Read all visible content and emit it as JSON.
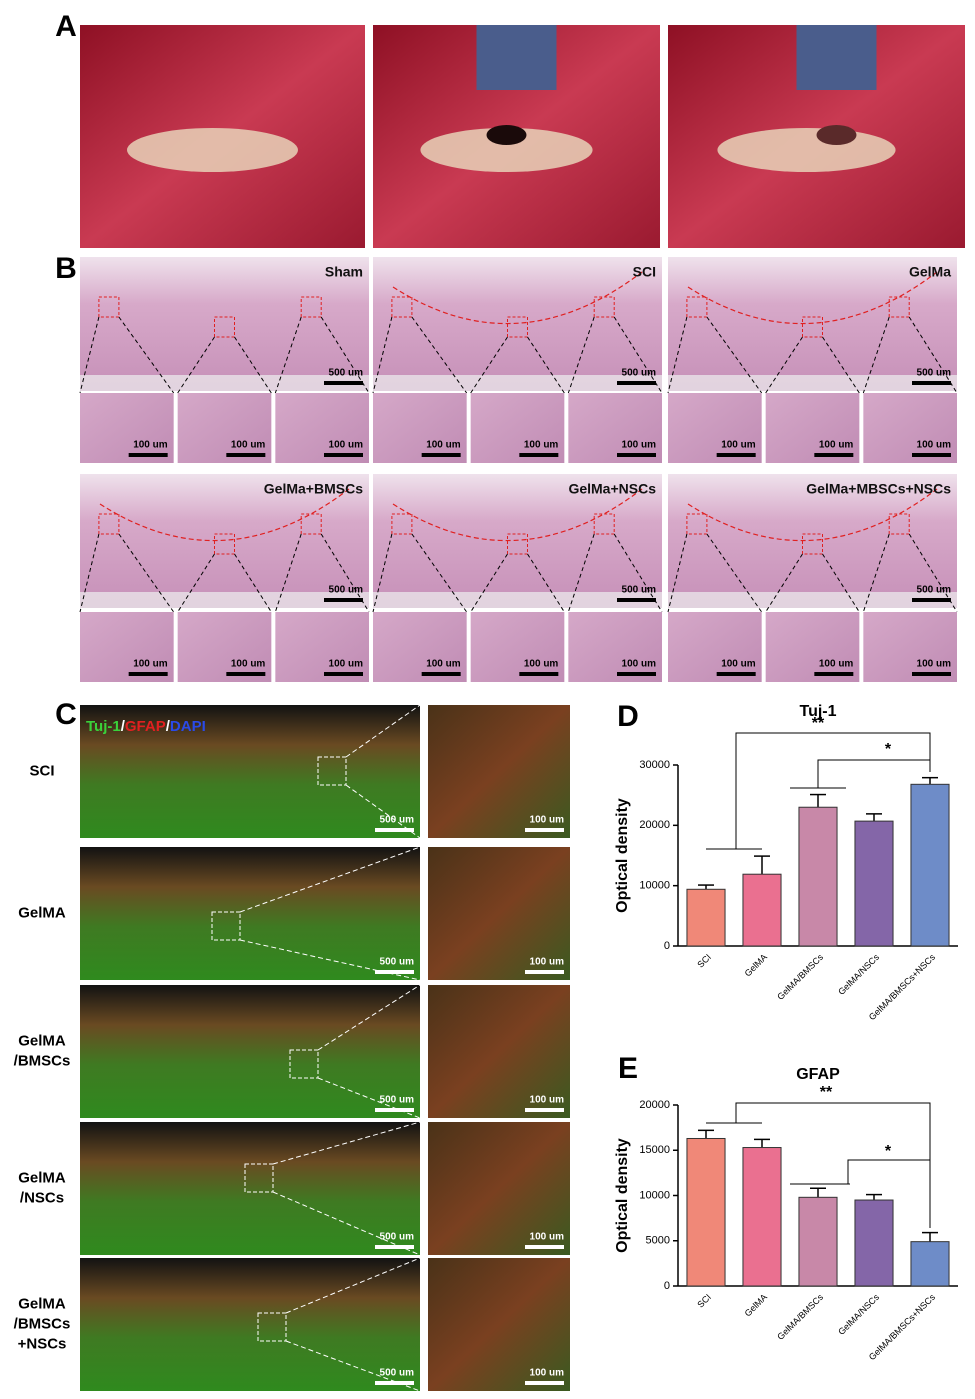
{
  "panel_letters": [
    "A",
    "B",
    "C",
    "D",
    "E"
  ],
  "B": {
    "groups": [
      "Sham",
      "SCI",
      "GelMa",
      "GelMa+BMSCs",
      "GelMa+NSCs",
      "GelMa+MBSCs+NSCs"
    ],
    "scale_large": "500 um",
    "scale_small": "100 um"
  },
  "C": {
    "stain": [
      "Tuj-1",
      "/",
      "GFAP",
      "/",
      "DAPI"
    ],
    "rows": [
      [
        "SCI"
      ],
      [
        "GelMA"
      ],
      [
        "GelMA",
        "/BMSCs"
      ],
      [
        "GelMA",
        "/NSCs"
      ],
      [
        "GelMA",
        "/BMSCs",
        "+NSCs"
      ]
    ],
    "scale_large": "500 um",
    "scale_small": "100 um"
  },
  "chart_data": [
    {
      "type": "bar",
      "title": "Tuj-1",
      "y_label": "Optical density",
      "categories": [
        "SCI",
        "GelMA",
        "GelMA/BMSCs",
        "GelMA/NSCs",
        "GelMA/BMSCs+NSCs"
      ],
      "values": [
        9400,
        11900,
        23000,
        20700,
        26800
      ],
      "errors": [
        700,
        3000,
        2100,
        1200,
        1100
      ],
      "colors": [
        "#f08878",
        "#ea7090",
        "#c888a8",
        "#8466a8",
        "#6e8cc8"
      ],
      "ylim": [
        0,
        30000
      ],
      "yticks": [
        0,
        10000,
        20000,
        30000
      ],
      "annotations": [
        "**",
        "*"
      ]
    },
    {
      "type": "bar",
      "title": "GFAP",
      "y_label": "Optical density",
      "categories": [
        "SCI",
        "GelMA",
        "GelMA/BMSCs",
        "GelMA/NSCs",
        "GelMA/BMSCs+NSCs"
      ],
      "values": [
        16300,
        15300,
        9800,
        9500,
        4900
      ],
      "errors": [
        900,
        900,
        1000,
        600,
        1000
      ],
      "colors": [
        "#f08878",
        "#ea7090",
        "#c888a8",
        "#8466a8",
        "#6e8cc8"
      ],
      "ylim": [
        0,
        20000
      ],
      "yticks": [
        0,
        5000,
        10000,
        15000,
        20000
      ],
      "annotations": [
        "**",
        "*"
      ]
    }
  ]
}
